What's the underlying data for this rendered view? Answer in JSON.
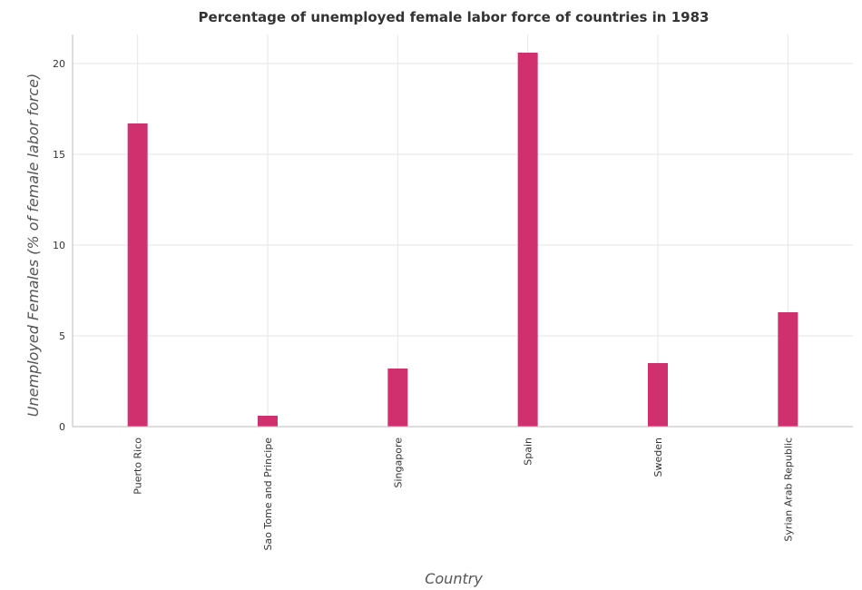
{
  "chart_data": {
    "type": "bar",
    "title": "Percentage of unemployed female labor force of countries in 1983",
    "xlabel": "Country",
    "ylabel": "Unemployed Females (% of female labor force)",
    "categories": [
      "Puerto Rico",
      "Sao Tome and Principe",
      "Singapore",
      "Spain",
      "Sweden",
      "Syrian Arab Republic"
    ],
    "values": [
      16.7,
      0.6,
      3.2,
      20.6,
      3.5,
      6.3
    ],
    "yticks": [
      0,
      5,
      10,
      15,
      20
    ],
    "ylim": [
      0,
      21.6
    ],
    "grid": true,
    "bar_color": "#d1306f"
  }
}
